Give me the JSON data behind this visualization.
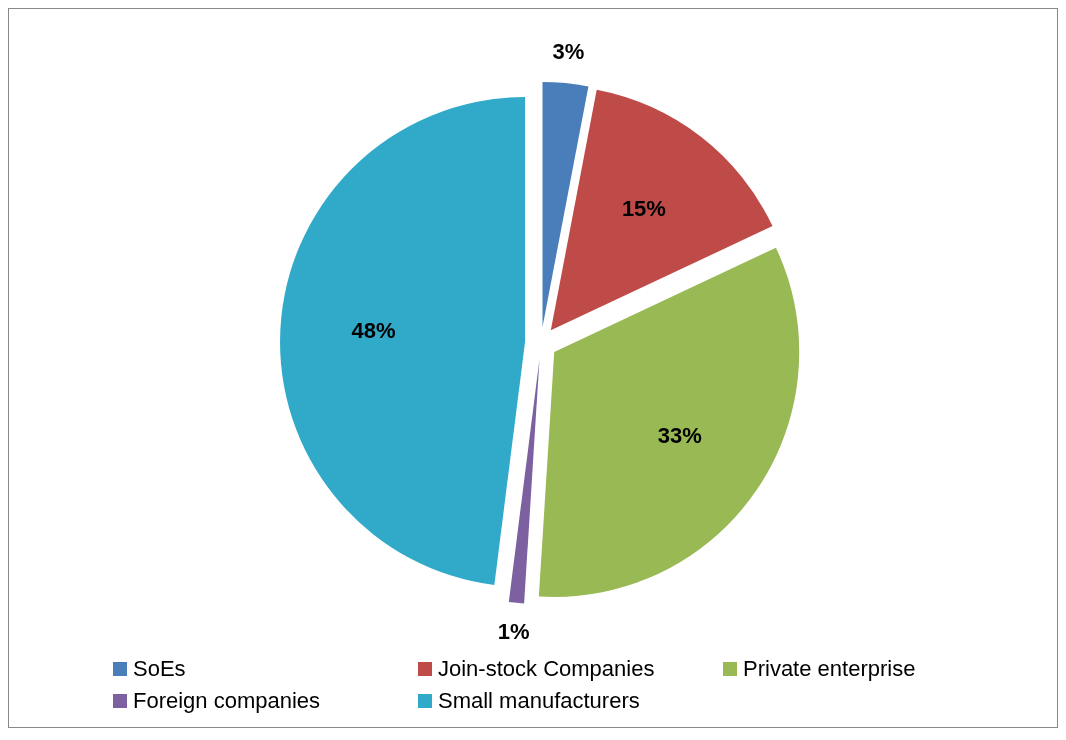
{
  "chart_data": {
    "type": "pie",
    "categories": [
      "SoEs",
      "Join-stock Companies",
      "Private enterprise",
      "Foreign companies",
      "Small manufacturers"
    ],
    "values": [
      3,
      15,
      33,
      1,
      48
    ],
    "colors": [
      "#4a7ebb",
      "#be4b48",
      "#98b954",
      "#7d60a0",
      "#31a9c9"
    ],
    "value_labels": [
      "3%",
      "15%",
      "33%",
      "1%",
      "48%"
    ],
    "data_labels": true,
    "legend": "bottom"
  }
}
